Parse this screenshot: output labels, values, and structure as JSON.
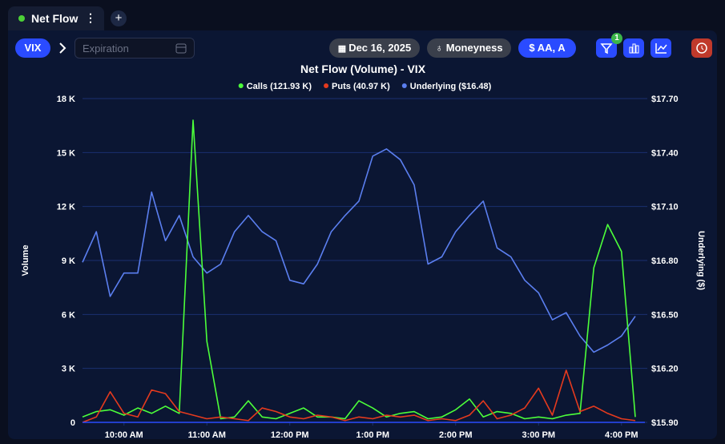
{
  "ui": {
    "tab_title": "Net Flow",
    "symbol": "VIX",
    "expiration_placeholder": "Expiration",
    "date": "Dec 16, 2025",
    "moneyness": "Moneyness",
    "money_filter": "AA, A",
    "filter_count": "1"
  },
  "chart_data": {
    "type": "line",
    "title": "Net Flow (Volume) - VIX",
    "y_label": "Volume",
    "y2_label": "Underlying ($)",
    "categories": [
      null,
      null,
      null,
      "10:00 AM",
      null,
      null,
      null,
      null,
      null,
      "11:00 AM",
      null,
      null,
      null,
      null,
      null,
      "12:00 PM",
      null,
      null,
      null,
      null,
      null,
      "1:00 PM",
      null,
      null,
      null,
      null,
      null,
      "2:00 PM",
      null,
      null,
      null,
      null,
      null,
      "3:00 PM",
      null,
      null,
      null,
      null,
      null,
      "4:00 PM",
      null
    ],
    "series": [
      {
        "name": "Calls (121.93 K)",
        "color": "#4cff3a",
        "values": [
          300,
          600,
          700,
          400,
          800,
          500,
          900,
          500,
          16800,
          4500,
          200,
          300,
          1200,
          300,
          200,
          500,
          800,
          300,
          300,
          200,
          1200,
          800,
          300,
          500,
          600,
          200,
          300,
          700,
          1300,
          300,
          600,
          500,
          200,
          300,
          200,
          400,
          500,
          8600,
          11000,
          9500,
          300
        ]
      },
      {
        "name": "Puts (40.97 K)",
        "color": "#e53a1e",
        "values": [
          0,
          300,
          1700,
          500,
          300,
          1800,
          1600,
          600,
          400,
          200,
          300,
          200,
          100,
          800,
          600,
          300,
          200,
          400,
          300,
          100,
          300,
          200,
          400,
          300,
          400,
          100,
          200,
          100,
          400,
          1200,
          200,
          400,
          800,
          1900,
          400,
          2900,
          600,
          900,
          500,
          200,
          100
        ]
      },
      {
        "name": "Underlying ($16.48)",
        "color": "#5b7ff0",
        "axis": "y2",
        "values": [
          16.79,
          16.96,
          16.6,
          16.73,
          16.73,
          17.18,
          16.91,
          17.05,
          16.82,
          16.73,
          16.78,
          16.96,
          17.05,
          16.96,
          16.91,
          16.69,
          16.67,
          16.78,
          16.96,
          17.05,
          17.13,
          17.38,
          17.42,
          17.36,
          17.22,
          16.78,
          16.82,
          16.96,
          17.05,
          17.13,
          16.87,
          16.82,
          16.69,
          16.62,
          16.47,
          16.51,
          16.38,
          16.29,
          16.33,
          16.38,
          16.49
        ]
      }
    ],
    "ylim": [
      0,
      18000
    ],
    "yticks": [
      {
        "value": 0,
        "label": "0"
      },
      {
        "value": 3000,
        "label": "3 K"
      },
      {
        "value": 6000,
        "label": "6 K"
      },
      {
        "value": 9000,
        "label": "9 K"
      },
      {
        "value": 12000,
        "label": "12 K"
      },
      {
        "value": 15000,
        "label": "15 K"
      },
      {
        "value": 18000,
        "label": "18 K"
      }
    ],
    "y2lim": [
      15.9,
      17.7
    ],
    "y2ticks": [
      {
        "value": 15.9,
        "label": "$15.90"
      },
      {
        "value": 16.2,
        "label": "$16.20"
      },
      {
        "value": 16.5,
        "label": "$16.50"
      },
      {
        "value": 16.8,
        "label": "$16.80"
      },
      {
        "value": 17.1,
        "label": "$17.10"
      },
      {
        "value": 17.4,
        "label": "$17.40"
      },
      {
        "value": 17.7,
        "label": "$17.70"
      }
    ],
    "grid": true
  }
}
